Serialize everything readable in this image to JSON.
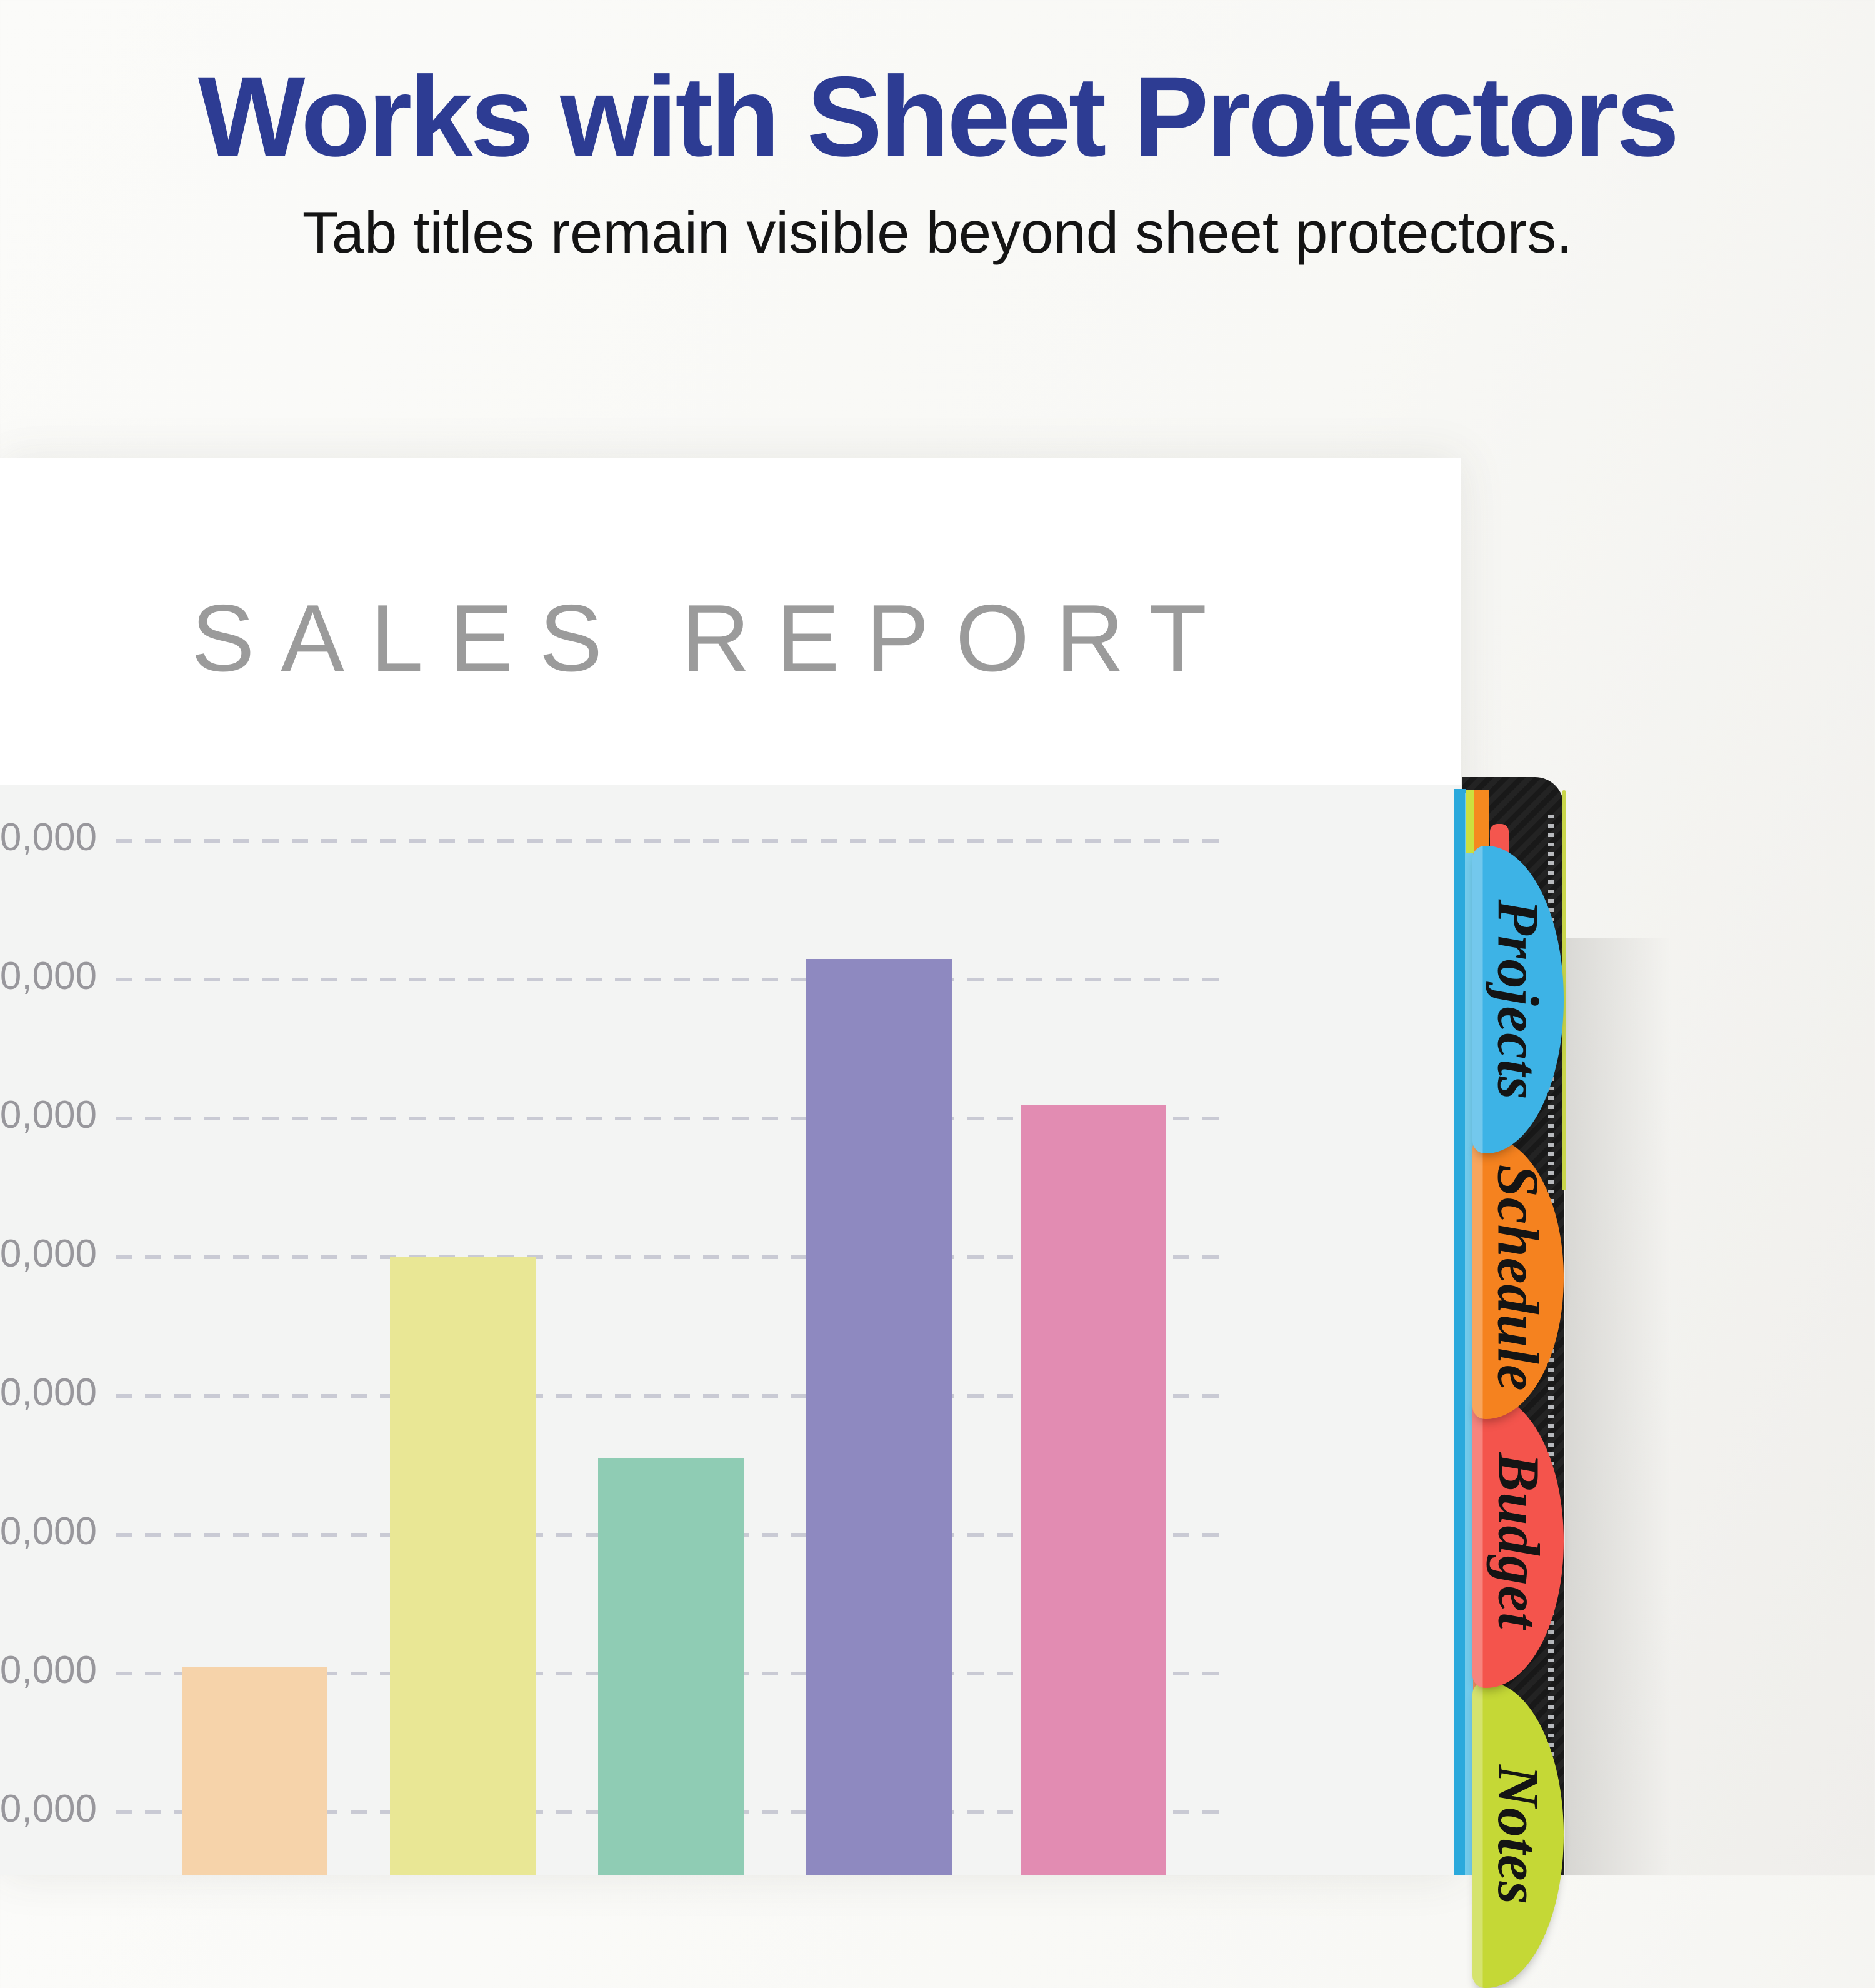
{
  "banner": {
    "title": "Works with Sheet Protectors",
    "subtitle": "Tab titles remain visible beyond sheet protectors.",
    "title_color": "#2d3c93",
    "subtitle_color": "#141414"
  },
  "report": {
    "title": "SALES REPORT",
    "title_color": "#9b9b9b"
  },
  "chart_data": {
    "type": "bar",
    "title": "SALES REPORT",
    "categories": [
      "",
      "",
      "",
      "",
      ""
    ],
    "values": [
      20500,
      50000,
      35500,
      71500,
      61000
    ],
    "bar_colors": [
      "#f6d3aa",
      "#e9e795",
      "#8fccb4",
      "#8e89c0",
      "#e28cb2"
    ],
    "xlabel": "",
    "ylabel": "",
    "y_tick_labels_visible": [
      "0,000",
      "0,000",
      "0,000",
      "0,000",
      "0,000",
      "0,000",
      "0,000",
      "0,000"
    ],
    "y_gridline_values_estimated": [
      80000,
      70000,
      60000,
      50000,
      40000,
      30000,
      20000,
      10000
    ],
    "ylim_visible": [
      10000,
      80000
    ],
    "grid": "dashed horizontal",
    "gridline_color": "#c9cad4",
    "tick_label_color": "#98979c",
    "plot_background": "#f3f4f3",
    "legend": "none",
    "x_axis_labels_visible": false
  },
  "tabs": [
    {
      "label": "Projects",
      "color": "#3db3e6"
    },
    {
      "label": "Schedule",
      "color": "#f5821f"
    },
    {
      "label": "Budget",
      "color": "#f4544c"
    },
    {
      "label": "Notes",
      "color": "#c5d836"
    }
  ],
  "binder": {
    "spine_color": "#191919",
    "edge_line_color": "#c9d64a",
    "sheet_edge_colors": {
      "blue": "#2aa9dc",
      "light_blue": "#72cbec",
      "salmon": "#ef8f64",
      "green": "#ccdf3f",
      "orange": "#f5891f",
      "red": "#f4564e"
    }
  }
}
